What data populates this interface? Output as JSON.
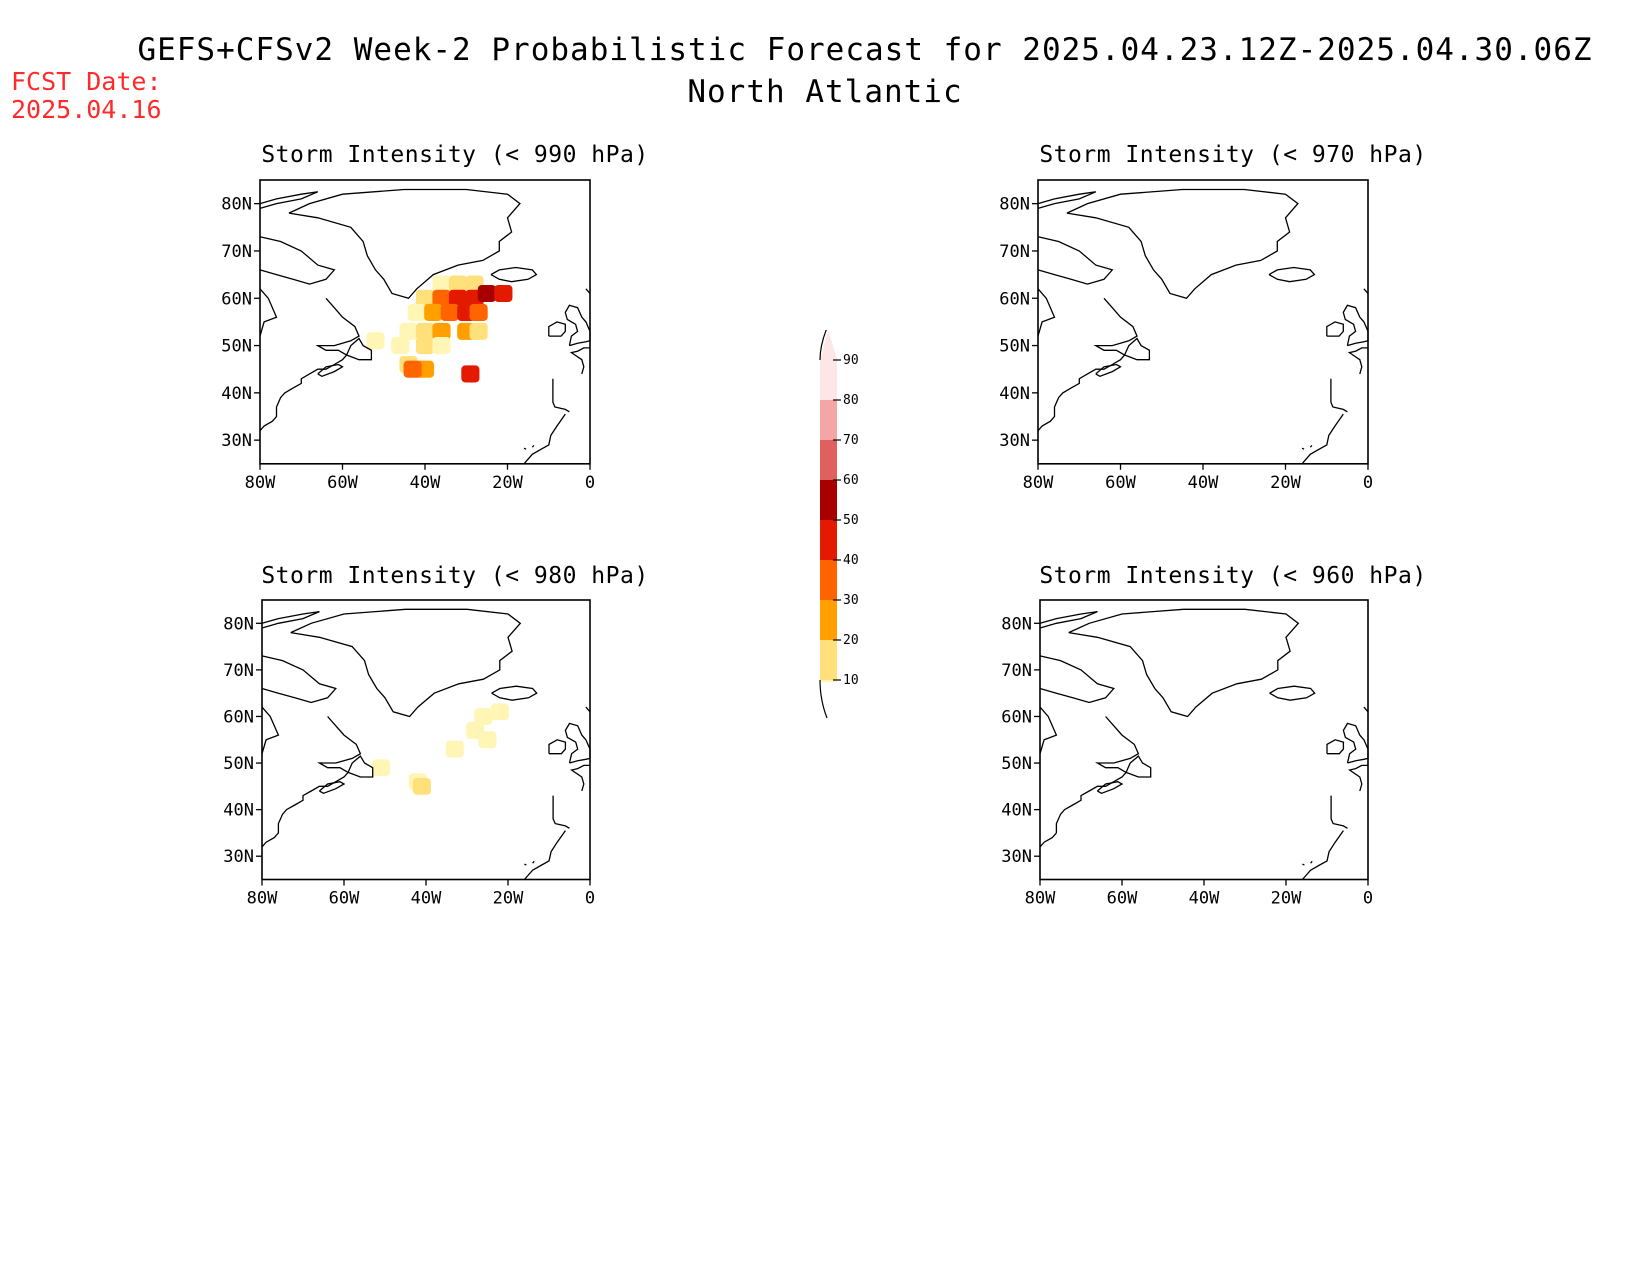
{
  "title": {
    "line1": "GEFS+CFSv2 Week-2 Probabilistic Forecast for 2025.04.23.12Z-2025.04.30.06Z",
    "line2": "North Atlantic"
  },
  "forecast_date": {
    "label": "FCST Date:",
    "value": "2025.04.16"
  },
  "colors": {
    "fcst_text": "#ff2a2a",
    "scale": [
      "#fff5b4",
      "#ffe07a",
      "#ff9f00",
      "#ff6400",
      "#e41a00",
      "#a80000",
      "#e06060",
      "#f4a5a5",
      "#ffe6e6"
    ]
  },
  "colorbar": {
    "levels": [
      "10",
      "20",
      "30",
      "40",
      "50",
      "60",
      "70",
      "80",
      "90"
    ]
  },
  "axes": {
    "lat_labels": [
      "80N",
      "70N",
      "60N",
      "50N",
      "40N",
      "30N"
    ],
    "lon_labels": [
      "80W",
      "60W",
      "40W",
      "20W",
      "0"
    ],
    "lat_range": [
      25,
      85
    ],
    "lon_range": [
      -80,
      0
    ]
  },
  "panels": [
    {
      "title": "Storm Intensity (< 990 hPa)",
      "probability_cells": [
        {
          "lon": -36,
          "lat": 63,
          "prob": 10
        },
        {
          "lon": -32,
          "lat": 63,
          "prob": 20
        },
        {
          "lon": -28,
          "lat": 63,
          "prob": 20
        },
        {
          "lon": -40,
          "lat": 60,
          "prob": 20
        },
        {
          "lon": -36,
          "lat": 60,
          "prob": 40
        },
        {
          "lon": -32,
          "lat": 60,
          "prob": 50
        },
        {
          "lon": -28,
          "lat": 60,
          "prob": 50
        },
        {
          "lon": -25,
          "lat": 61,
          "prob": 60
        },
        {
          "lon": -21,
          "lat": 61,
          "prob": 50
        },
        {
          "lon": -42,
          "lat": 57,
          "prob": 10
        },
        {
          "lon": -38,
          "lat": 57,
          "prob": 30
        },
        {
          "lon": -34,
          "lat": 57,
          "prob": 40
        },
        {
          "lon": -30,
          "lat": 57,
          "prob": 50
        },
        {
          "lon": -27,
          "lat": 57,
          "prob": 40
        },
        {
          "lon": -44,
          "lat": 53,
          "prob": 10
        },
        {
          "lon": -40,
          "lat": 53,
          "prob": 20
        },
        {
          "lon": -36,
          "lat": 53,
          "prob": 30
        },
        {
          "lon": -30,
          "lat": 53,
          "prob": 30
        },
        {
          "lon": -27,
          "lat": 53,
          "prob": 20
        },
        {
          "lon": -52,
          "lat": 51,
          "prob": 10
        },
        {
          "lon": -46,
          "lat": 50,
          "prob": 10
        },
        {
          "lon": -40,
          "lat": 50,
          "prob": 20
        },
        {
          "lon": -36,
          "lat": 50,
          "prob": 10
        },
        {
          "lon": -44,
          "lat": 46,
          "prob": 20
        },
        {
          "lon": -40,
          "lat": 45,
          "prob": 30
        },
        {
          "lon": -43,
          "lat": 45,
          "prob": 40
        },
        {
          "lon": -29,
          "lat": 44,
          "prob": 50
        }
      ]
    },
    {
      "title": "Storm Intensity (< 970 hPa)",
      "probability_cells": []
    },
    {
      "title": "Storm Intensity (< 980 hPa)",
      "probability_cells": [
        {
          "lon": -26,
          "lat": 60,
          "prob": 10
        },
        {
          "lon": -22,
          "lat": 61,
          "prob": 10
        },
        {
          "lon": -28,
          "lat": 57,
          "prob": 10
        },
        {
          "lon": -25,
          "lat": 55,
          "prob": 10
        },
        {
          "lon": -33,
          "lat": 53,
          "prob": 10
        },
        {
          "lon": -42,
          "lat": 46,
          "prob": 10
        },
        {
          "lon": -41,
          "lat": 45,
          "prob": 20
        },
        {
          "lon": -51,
          "lat": 49,
          "prob": 10
        }
      ]
    },
    {
      "title": "Storm Intensity (< 960 hPa)",
      "probability_cells": []
    }
  ]
}
